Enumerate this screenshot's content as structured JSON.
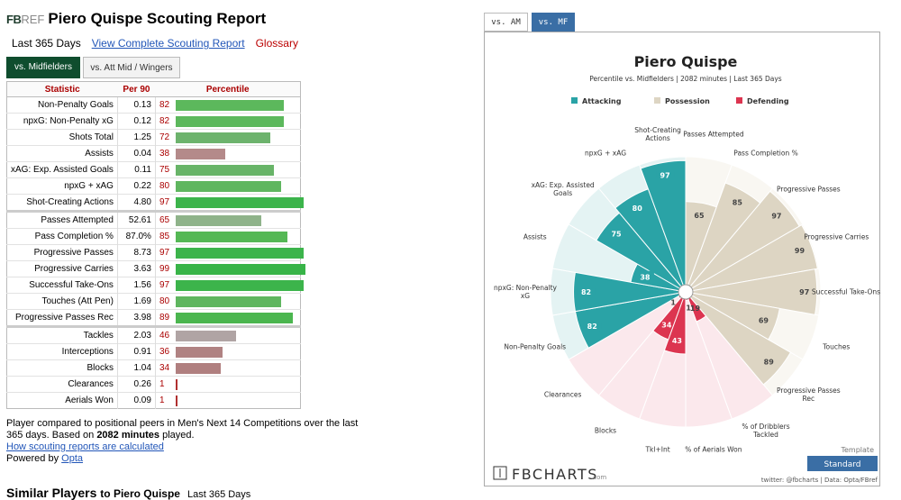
{
  "header": {
    "logo": [
      "FB",
      "REF"
    ],
    "title": "Piero Quispe Scouting Report",
    "period": "Last 365 Days",
    "link": "View Complete Scouting Report",
    "glossary": "Glossary"
  },
  "tabs": [
    "vs. Midfielders",
    "vs. Att Mid / Wingers"
  ],
  "table": {
    "columns": [
      "Statistic",
      "Per 90",
      "Percentile"
    ],
    "xlim": [
      0,
      100
    ],
    "groups": [
      [
        {
          "stat": "Non-Penalty Goals",
          "per90": "0.13",
          "percentile": 82,
          "color": "#5cb85c"
        },
        {
          "stat": "npxG: Non-Penalty xG",
          "per90": "0.12",
          "percentile": 82,
          "color": "#5cb85c"
        },
        {
          "stat": "Shots Total",
          "per90": "1.25",
          "percentile": 72,
          "color": "#6db36d"
        },
        {
          "stat": "Assists",
          "per90": "0.04",
          "percentile": 38,
          "color": "#b48a8a"
        },
        {
          "stat": "xAG: Exp. Assisted Goals",
          "per90": "0.11",
          "percentile": 75,
          "color": "#68b468"
        },
        {
          "stat": "npxG + xAG",
          "per90": "0.22",
          "percentile": 80,
          "color": "#5fb65f"
        },
        {
          "stat": "Shot-Creating Actions",
          "per90": "4.80",
          "percentile": 97,
          "color": "#3cb44b"
        }
      ],
      [
        {
          "stat": "Passes Attempted",
          "per90": "52.61",
          "percentile": 65,
          "color": "#8fb38a"
        },
        {
          "stat": "Pass Completion %",
          "per90": "87.0%",
          "percentile": 85,
          "color": "#55b855"
        },
        {
          "stat": "Progressive Passes",
          "per90": "8.73",
          "percentile": 97,
          "color": "#3cb44b"
        },
        {
          "stat": "Progressive Carries",
          "per90": "3.63",
          "percentile": 99,
          "color": "#38b448"
        },
        {
          "stat": "Successful Take-Ons",
          "per90": "1.56",
          "percentile": 97,
          "color": "#3cb44b"
        },
        {
          "stat": "Touches (Att Pen)",
          "per90": "1.69",
          "percentile": 80,
          "color": "#5fb65f"
        },
        {
          "stat": "Progressive Passes Rec",
          "per90": "3.98",
          "percentile": 89,
          "color": "#4bb64f"
        }
      ],
      [
        {
          "stat": "Tackles",
          "per90": "2.03",
          "percentile": 46,
          "color": "#b0a4a4"
        },
        {
          "stat": "Interceptions",
          "per90": "0.91",
          "percentile": 36,
          "color": "#b08282"
        },
        {
          "stat": "Blocks",
          "per90": "1.04",
          "percentile": 34,
          "color": "#b07f7f"
        },
        {
          "stat": "Clearances",
          "per90": "0.26",
          "percentile": 1,
          "color": "#b03030"
        },
        {
          "stat": "Aerials Won",
          "per90": "0.09",
          "percentile": 1,
          "color": "#b03030"
        }
      ]
    ]
  },
  "note": {
    "text": "Player compared to positional peers in Men's Next 14 Competitions over the last 365 days. Based on",
    "minutes": "2082 minutes",
    "after": "played.",
    "how": "How scouting reports are calculated",
    "powered": "Powered by",
    "opta": "Opta"
  },
  "similar": {
    "title": "Similar Players",
    "to": "to Piero Quispe",
    "period": "Last 365 Days"
  },
  "pizza": {
    "tabs": [
      "vs. AM",
      "vs. MF"
    ],
    "title": "Piero Quispe",
    "subtitle": "Percentile vs. Midfielders | 2082 minutes | Last 365 Days",
    "rlim": [
      0,
      100
    ],
    "categories": [
      {
        "name": "Attacking",
        "color": "#2aa3a6",
        "light": "#e4f3f3"
      },
      {
        "name": "Possession",
        "color": "#ddd5c3",
        "light": "#f9f7f2"
      },
      {
        "name": "Defending",
        "color": "#dc3550",
        "light": "#fbe8ec"
      }
    ],
    "wedges": [
      {
        "label": "Passes Attempted",
        "value": 65,
        "category": 1
      },
      {
        "label": "Pass Completion %",
        "value": 85,
        "category": 1
      },
      {
        "label": "Progressive Passes",
        "value": 97,
        "category": 1
      },
      {
        "label": "Progressive Carries",
        "value": 99,
        "category": 1
      },
      {
        "label": "Successful Take-Ons",
        "value": 97,
        "category": 1
      },
      {
        "label": "Touches",
        "value": 69,
        "category": 1
      },
      {
        "label": "Progressive Passes Rec",
        "value": 89,
        "category": 1
      },
      {
        "label": "% of Dribblers Tackled",
        "value": 19,
        "category": 2
      },
      {
        "label": "% of Aerials Won",
        "value": 1,
        "category": 2
      },
      {
        "label": "Tkl+Int",
        "value": 43,
        "category": 2
      },
      {
        "label": "Blocks",
        "value": 34,
        "category": 2
      },
      {
        "label": "Clearances",
        "value": 1,
        "category": 2
      },
      {
        "label": "Non-Penalty Goals",
        "value": 82,
        "category": 0
      },
      {
        "label": "npxG: Non-Penalty xG",
        "value": 82,
        "category": 0
      },
      {
        "label": "Assists",
        "value": 38,
        "category": 0
      },
      {
        "label": "xAG: Exp. Assisted Goals",
        "value": 75,
        "category": 0
      },
      {
        "label": "npxG + xAG",
        "value": 80,
        "category": 0
      },
      {
        "label": "Shot-Creating Actions",
        "value": 97,
        "category": 0
      }
    ],
    "brand": "FBCHARTS",
    "brand_suffix": ".com",
    "template": "Template",
    "standard": "Standard",
    "credit": "twitter: @fbcharts | Data: Opta/FBref"
  }
}
